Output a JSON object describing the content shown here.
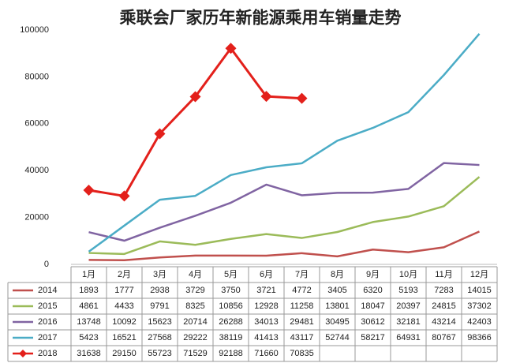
{
  "chart_data": {
    "type": "line",
    "title": "乘联会厂家历年新能源乘用车销量走势",
    "categories": [
      "1月",
      "2月",
      "3月",
      "4月",
      "5月",
      "6月",
      "7月",
      "8月",
      "9月",
      "10月",
      "11月",
      "12月"
    ],
    "series": [
      {
        "name": "2014",
        "color": "#c0504d",
        "values": [
          1893,
          1777,
          2938,
          3729,
          3750,
          3721,
          4772,
          3405,
          6320,
          5193,
          7283,
          14015
        ]
      },
      {
        "name": "2015",
        "color": "#9bbb59",
        "values": [
          4861,
          4433,
          9791,
          8325,
          10856,
          12928,
          11258,
          13801,
          18047,
          20397,
          24815,
          37302
        ]
      },
      {
        "name": "2016",
        "color": "#8064a2",
        "values": [
          13748,
          10092,
          15623,
          20714,
          26288,
          34013,
          29481,
          30495,
          30612,
          32181,
          43214,
          42403
        ]
      },
      {
        "name": "2017",
        "color": "#4bacc6",
        "values": [
          5423,
          16521,
          27568,
          29222,
          38119,
          41413,
          43117,
          52744,
          58217,
          64931,
          80767,
          98366
        ]
      },
      {
        "name": "2018",
        "color": "#e3201b",
        "marker": "diamond",
        "values": [
          31638,
          29150,
          55723,
          71529,
          92188,
          71660,
          70835,
          null,
          null,
          null,
          null,
          null
        ]
      }
    ],
    "ylim": [
      0,
      100000
    ],
    "yticks": [
      0,
      20000,
      40000,
      60000,
      80000,
      100000
    ],
    "grid": false
  }
}
